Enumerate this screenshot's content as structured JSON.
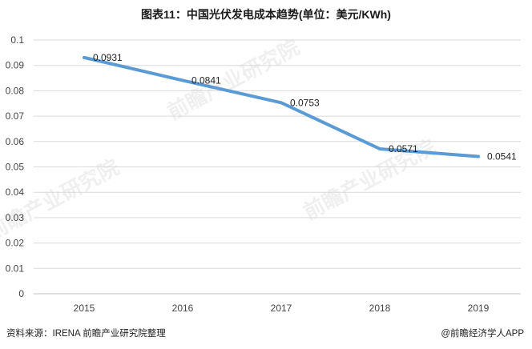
{
  "chart_data": {
    "type": "line",
    "title": "图表11：中国光伏发电成本趋势(单位：美元/KWh)",
    "categories": [
      "2015",
      "2016",
      "2017",
      "2018",
      "2019"
    ],
    "series": [
      {
        "values": [
          0.0931,
          0.0841,
          0.0753,
          0.0571,
          0.0541
        ]
      }
    ],
    "data_labels": [
      "0.0931",
      "0.0841",
      "0.0753",
      "0.0571",
      "0.0541"
    ],
    "ylim": [
      0,
      0.1
    ],
    "yticks": [
      "0",
      "0.01",
      "0.02",
      "0.03",
      "0.04",
      "0.05",
      "0.06",
      "0.07",
      "0.08",
      "0.09",
      "0.1"
    ],
    "xlabel": "",
    "ylabel": "",
    "grid": true,
    "line_color": "#5b9bd5"
  },
  "footer": {
    "source": "资料来源：IRENA 前瞻产业研究院整理",
    "brand": "@前瞻经济学人APP"
  },
  "watermark": "前瞻产业研究院"
}
